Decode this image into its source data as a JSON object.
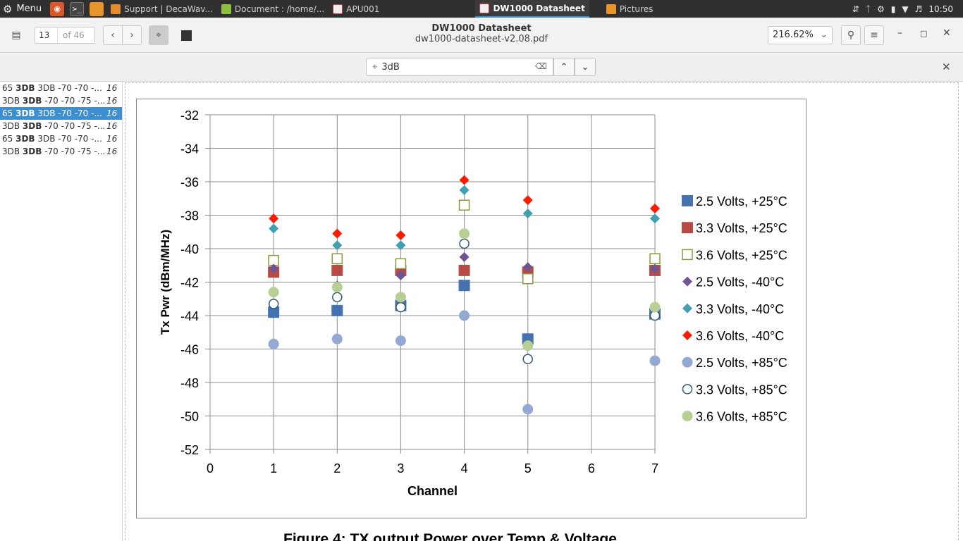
{
  "panel": {
    "menu_label": "Menu",
    "tasks": [
      {
        "label": "Support | DecaWav...",
        "color": "#e58b2e"
      },
      {
        "label": "Document : /home/...",
        "color": "#8fbf3f"
      },
      {
        "label": "APU001",
        "color": "#c84444"
      },
      {
        "label": "DW1000 Datasheet",
        "color": "#c84444"
      },
      {
        "label": "Pictures",
        "color": "#e8952c"
      }
    ],
    "clock": "10:50"
  },
  "header": {
    "page_current": "13",
    "page_total": "of 46",
    "doc_title": "DW1000 Datasheet",
    "doc_filename": "dw1000-datasheet-v2.08.pdf",
    "zoom": "216.62%"
  },
  "find": {
    "query": "3dB"
  },
  "sidebar": {
    "results": [
      {
        "pre": "65 ",
        "match": "3DB",
        "post": " 3DB -70 -70 -...",
        "page": "16",
        "selected": false
      },
      {
        "pre": "3DB ",
        "match": "3DB",
        "post": " -70 -70 -75 -...",
        "page": "16",
        "selected": false
      },
      {
        "pre": "65 ",
        "match": "3DB",
        "post": " 3DB -70 -70 -...",
        "page": "16",
        "selected": true
      },
      {
        "pre": "3DB ",
        "match": "3DB",
        "post": " -70 -70 -75 -...",
        "page": "16",
        "selected": false
      },
      {
        "pre": "65 ",
        "match": "3DB",
        "post": " 3DB -70 -70 -...",
        "page": "16",
        "selected": false
      },
      {
        "pre": "3DB ",
        "match": "3DB",
        "post": " -70 -70 -75 -...",
        "page": "16",
        "selected": false
      }
    ]
  },
  "document": {
    "caption": "Figure 4: TX output Power over Temp & Voltage"
  },
  "chart_data": {
    "type": "scatter",
    "title": "",
    "xlabel": "Channel",
    "ylabel": "Tx Pwr (dBm/MHz)",
    "xlim": [
      0,
      7
    ],
    "ylim": [
      -52,
      -32
    ],
    "x_ticks": [
      "0",
      "1",
      "2",
      "3",
      "4",
      "5",
      "6",
      "7"
    ],
    "y_ticks": [
      "-32",
      "-34",
      "-36",
      "-38",
      "-40",
      "-42",
      "-44",
      "-46",
      "-48",
      "-50",
      "-52"
    ],
    "grid": true,
    "legend_position": "right",
    "x": [
      1,
      2,
      3,
      4,
      5,
      7
    ],
    "series": [
      {
        "name": "2.5 Volts,  +25°C",
        "marker": "square",
        "color": "#4372b0",
        "values": [
          -43.8,
          -43.7,
          -43.4,
          -42.2,
          -45.4,
          -43.9
        ]
      },
      {
        "name": "3.3 Volts,  +25°C",
        "marker": "square",
        "color": "#b84a46",
        "values": [
          -41.4,
          -41.3,
          -41.3,
          -41.3,
          -41.4,
          -41.3
        ]
      },
      {
        "name": "3.6 Volts,  +25°C",
        "marker": "square-open",
        "color": "#8a9a3a",
        "values": [
          -40.7,
          -40.6,
          -40.9,
          -37.4,
          -41.8,
          -40.6
        ]
      },
      {
        "name": "2.5 Volts,  -40°C",
        "marker": "diamond",
        "color": "#6f5496",
        "values": [
          -41.2,
          -42.2,
          -41.6,
          -40.5,
          -41.1,
          -41.2
        ]
      },
      {
        "name": "3.3 Volts,  -40°C",
        "marker": "diamond",
        "color": "#3ea0b0",
        "values": [
          -38.8,
          -39.8,
          -39.8,
          -36.5,
          -37.9,
          -38.2
        ]
      },
      {
        "name": "3.6 Volts,  -40°C",
        "marker": "diamond",
        "color": "#ff1a00",
        "values": [
          -38.2,
          -39.1,
          -39.2,
          -35.9,
          -37.1,
          -37.6
        ]
      },
      {
        "name": "2.5 Volts,  +85°C",
        "marker": "circle",
        "color": "#93a9d4",
        "values": [
          -45.7,
          -45.4,
          -45.5,
          -44.0,
          -49.6,
          -46.7
        ]
      },
      {
        "name": "3.3 Volts,  +85°C",
        "marker": "circle-open",
        "color": "#2f5a6a",
        "values": [
          -43.3,
          -42.9,
          -43.5,
          -39.7,
          -46.6,
          -44.0
        ]
      },
      {
        "name": "3.6 Volts,  +85°C",
        "marker": "circle",
        "color": "#b7cf93",
        "values": [
          -42.6,
          -42.3,
          -42.9,
          -39.1,
          -45.8,
          -43.5
        ]
      }
    ]
  }
}
